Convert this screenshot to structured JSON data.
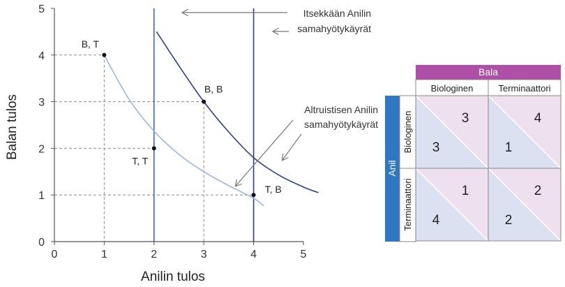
{
  "chart_data": {
    "type": "line",
    "xlabel": "Anilin tulos",
    "ylabel": "Balan tulos",
    "xlim": [
      0,
      5
    ],
    "ylim": [
      0,
      5
    ],
    "xticks": [
      "0",
      "1",
      "2",
      "3",
      "4",
      "5"
    ],
    "yticks": [
      "0",
      "1",
      "2",
      "3",
      "4",
      "5"
    ],
    "grid": false,
    "points": [
      {
        "label": "B, T",
        "x": 1,
        "y": 4
      },
      {
        "label": "B, B",
        "x": 3,
        "y": 3
      },
      {
        "label": "T, T",
        "x": 2,
        "y": 2
      },
      {
        "label": "T, B",
        "x": 4,
        "y": 1
      }
    ],
    "series": [
      {
        "kind": "vertical",
        "x": 2,
        "color": "#3d6bbf"
      },
      {
        "kind": "vertical",
        "x": 4,
        "color": "#2b3f8c"
      },
      {
        "kind": "curve",
        "color": "#9ab8e2",
        "x": [
          1,
          1.5,
          2,
          2.5,
          3,
          3.5,
          4,
          4.2
        ],
        "y": [
          4,
          3.05,
          2.37,
          1.87,
          1.5,
          1.2,
          0.93,
          0.77
        ]
      },
      {
        "kind": "curve",
        "color": "#2b3f8c",
        "x": [
          2.05,
          2.5,
          3,
          3.5,
          4,
          4.5,
          5,
          5.3
        ],
        "y": [
          4.5,
          3.77,
          3,
          2.35,
          1.8,
          1.43,
          1.17,
          1.05
        ]
      }
    ],
    "annotations": [
      {
        "lines": [
          "Itsekkään Anilin",
          "samahyötykäyrät"
        ]
      },
      {
        "lines": [
          "Altruistisen Anilin",
          "samahyötykäyrät"
        ]
      }
    ]
  },
  "payoff_table": {
    "column_player": "Bala",
    "row_player": "Anil",
    "column_strategies": [
      "Biologinen",
      "Terminaattori"
    ],
    "row_strategies": [
      "Biologinen",
      "Terminaattori"
    ],
    "cells": [
      [
        {
          "row_payoff": "3",
          "col_payoff": "3"
        },
        {
          "row_payoff": "1",
          "col_payoff": "4"
        }
      ],
      [
        {
          "row_payoff": "4",
          "col_payoff": "1"
        },
        {
          "row_payoff": "2",
          "col_payoff": "2"
        }
      ]
    ],
    "colors": {
      "column_player_header": "#b04fa8",
      "row_player_header": "#2f76c3",
      "row_payoff_fill": "#dbe1f0",
      "col_payoff_fill": "#efe0ef"
    }
  }
}
